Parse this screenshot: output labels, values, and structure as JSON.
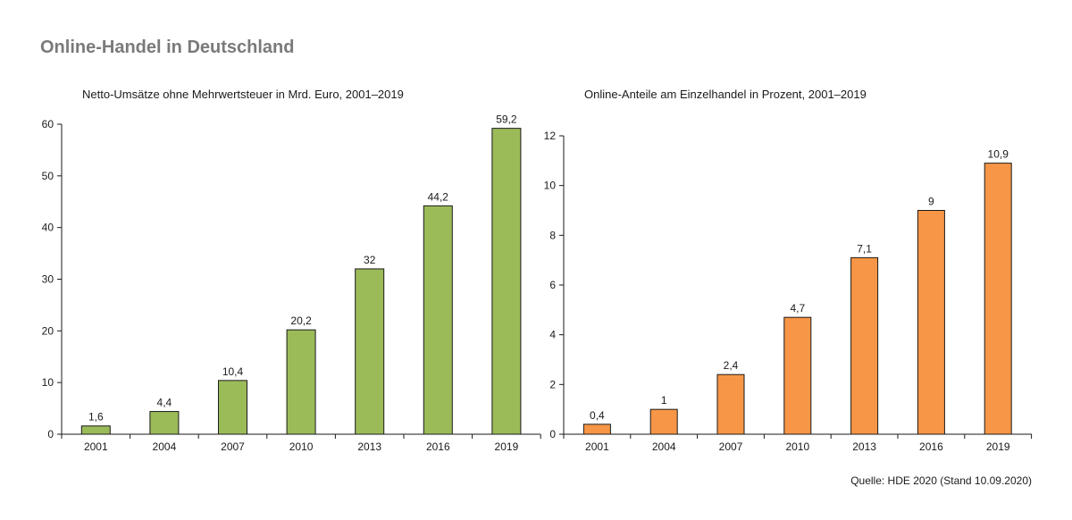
{
  "page": {
    "title": "Online-Handel in Deutschland",
    "source": "Quelle: HDE 2020 (Stand 10.09.2020)"
  },
  "chart_data": [
    {
      "type": "bar",
      "title": "Netto-Umsätze ohne Mehrwertsteuer in Mrd. Euro, 2001–2019",
      "xlabel": "",
      "ylabel": "",
      "categories": [
        "2001",
        "2004",
        "2007",
        "2010",
        "2013",
        "2016",
        "2019"
      ],
      "values": [
        1.6,
        4.4,
        10.4,
        20.2,
        32,
        44.2,
        59.2
      ],
      "value_labels": [
        "1,6",
        "4,4",
        "10,4",
        "20,2",
        "32",
        "44,2",
        "59,2"
      ],
      "ylim": [
        0,
        60
      ],
      "yticks": [
        0,
        10,
        20,
        30,
        40,
        50,
        60
      ],
      "color": "#9bbb59",
      "grid": false,
      "legend": "none"
    },
    {
      "type": "bar",
      "title": "Online-Anteile am Einzelhandel in Prozent, 2001–2019",
      "xlabel": "",
      "ylabel": "",
      "categories": [
        "2001",
        "2004",
        "2007",
        "2010",
        "2013",
        "2016",
        "2019"
      ],
      "values": [
        0.4,
        1,
        2.4,
        4.7,
        7.1,
        9,
        10.9
      ],
      "value_labels": [
        "0,4",
        "1",
        "2,4",
        "4,7",
        "7,1",
        "9",
        "10,9"
      ],
      "ylim": [
        0,
        12
      ],
      "yticks": [
        0,
        2,
        4,
        6,
        8,
        10,
        12
      ],
      "color": "#f79646",
      "grid": false,
      "legend": "none"
    }
  ]
}
